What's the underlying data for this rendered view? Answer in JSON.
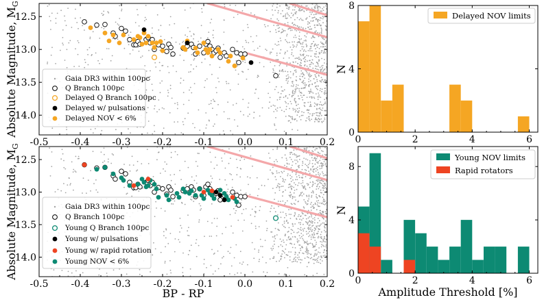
{
  "colors": {
    "gaia": "#a3a3a3",
    "q_branch_edge": "#000000",
    "delayed": "#f5a623",
    "pulsation": "#000000",
    "young": "#0d8a73",
    "rapid": "#ee4422",
    "band": "#f4a7a9"
  },
  "chart_data": [
    {
      "id": "cmd_delayed",
      "type": "scatter",
      "xlabel": "",
      "ylabel": "Absolute Magnitude, M",
      "ylabel_sub": "G",
      "xlim": [
        -0.5,
        0.2
      ],
      "ylim": [
        14.3,
        12.3
      ],
      "xticks": [
        "-0.5",
        "-0.4",
        "-0.3",
        "-0.2",
        "-0.1",
        "0.0",
        "0.1",
        "0.2"
      ],
      "yticks": [
        "12.5",
        "13.0",
        "13.5",
        "14.0"
      ],
      "legend_position": "lower-left",
      "legend": [
        {
          "label": "Gaia DR3 within 100pc",
          "marker": "gaia"
        },
        {
          "label": "Q Branch 100pc",
          "marker": "qbranch"
        },
        {
          "label": "Delayed Q Branch 100pc",
          "marker": "delayed_q"
        },
        {
          "label": "Delayed w/ pulsations",
          "marker": "pulsation"
        },
        {
          "label": "Delayed NOV < 6%",
          "marker": "delayed_nov"
        }
      ],
      "series": {
        "q_branch": [
          [
            -0.39,
            12.58
          ],
          [
            -0.36,
            12.63
          ],
          [
            -0.34,
            12.62
          ],
          [
            -0.32,
            12.75
          ],
          [
            -0.315,
            12.8
          ],
          [
            -0.3,
            12.68
          ],
          [
            -0.29,
            12.72
          ],
          [
            -0.28,
            12.85
          ],
          [
            -0.27,
            12.93
          ],
          [
            -0.265,
            12.93
          ],
          [
            -0.26,
            12.88
          ],
          [
            -0.255,
            12.92
          ],
          [
            -0.24,
            12.85
          ],
          [
            -0.235,
            12.82
          ],
          [
            -0.23,
            12.9
          ],
          [
            -0.225,
            12.85
          ],
          [
            -0.22,
            13.0
          ],
          [
            -0.21,
            12.93
          ],
          [
            -0.2,
            12.95
          ],
          [
            -0.19,
            13.03
          ],
          [
            -0.185,
            12.92
          ],
          [
            -0.18,
            12.97
          ],
          [
            -0.175,
            13.07
          ],
          [
            -0.15,
            12.98
          ],
          [
            -0.14,
            12.95
          ],
          [
            -0.13,
            12.92
          ],
          [
            -0.125,
            12.97
          ],
          [
            -0.12,
            13.07
          ],
          [
            -0.11,
            12.95
          ],
          [
            -0.1,
            13.05
          ],
          [
            -0.095,
            12.92
          ],
          [
            -0.09,
            12.88
          ],
          [
            -0.085,
            12.95
          ],
          [
            -0.08,
            13.0
          ],
          [
            -0.075,
            13.05
          ],
          [
            -0.07,
            13.02
          ],
          [
            -0.065,
            12.98
          ],
          [
            -0.06,
            13.12
          ],
          [
            -0.05,
            13.05
          ],
          [
            -0.045,
            13.1
          ],
          [
            -0.03,
            13.0
          ],
          [
            -0.02,
            13.05
          ],
          [
            -0.01,
            13.07
          ],
          [
            0.0,
            13.07
          ],
          [
            -0.015,
            13.2
          ],
          [
            0.075,
            13.4
          ]
        ],
        "delayed_q": [
          [
            -0.22,
            13.12
          ]
        ],
        "pulsation": [
          [
            -0.245,
            12.7
          ],
          [
            -0.14,
            12.9
          ],
          [
            0.015,
            13.2
          ]
        ],
        "delayed_nov": [
          [
            -0.375,
            12.67
          ],
          [
            -0.34,
            12.75
          ],
          [
            -0.33,
            12.87
          ],
          [
            -0.32,
            12.78
          ],
          [
            -0.305,
            12.9
          ],
          [
            -0.295,
            12.78
          ],
          [
            -0.27,
            12.85
          ],
          [
            -0.26,
            12.8
          ],
          [
            -0.255,
            12.82
          ],
          [
            -0.25,
            12.92
          ],
          [
            -0.245,
            12.75
          ],
          [
            -0.24,
            12.9
          ],
          [
            -0.235,
            12.8
          ],
          [
            -0.225,
            12.9
          ],
          [
            -0.22,
            12.97
          ],
          [
            -0.215,
            12.9
          ],
          [
            -0.205,
            12.88
          ],
          [
            -0.2,
            13.02
          ],
          [
            -0.15,
            12.97
          ],
          [
            -0.145,
            13.0
          ],
          [
            -0.14,
            12.87
          ],
          [
            -0.12,
            12.98
          ],
          [
            -0.115,
            13.05
          ],
          [
            -0.1,
            12.9
          ],
          [
            -0.095,
            13.0
          ],
          [
            -0.09,
            13.05
          ],
          [
            -0.085,
            13.0
          ],
          [
            -0.08,
            13.1
          ],
          [
            -0.065,
            13.0
          ],
          [
            -0.06,
            13.05
          ],
          [
            -0.04,
            13.18
          ],
          [
            -0.035,
            13.1
          ],
          [
            -0.025,
            13.25
          ],
          [
            -0.005,
            13.13
          ]
        ]
      }
    },
    {
      "id": "hist_delayed",
      "type": "bar",
      "xlabel": "",
      "ylabel": "N",
      "xlim": [
        0,
        6.3
      ],
      "ylim": [
        0,
        8
      ],
      "xticks": [
        "0",
        "2",
        "4",
        "6"
      ],
      "yticks": [
        "0",
        "4",
        "8"
      ],
      "bin_width": 0.4,
      "legend_position": "top-right",
      "legend": [
        {
          "label": "Delayed NOV limits",
          "series": "delayed"
        }
      ],
      "series": [
        {
          "name": "Delayed NOV limits",
          "bins": [
            [
              0.0,
              7
            ],
            [
              0.4,
              8
            ],
            [
              0.8,
              2
            ],
            [
              1.2,
              3
            ],
            [
              1.6,
              0
            ],
            [
              2.0,
              0
            ],
            [
              2.4,
              0
            ],
            [
              2.8,
              0
            ],
            [
              3.2,
              3
            ],
            [
              3.6,
              2
            ],
            [
              4.0,
              0
            ],
            [
              4.4,
              0
            ],
            [
              4.8,
              0
            ],
            [
              5.2,
              0
            ],
            [
              5.6,
              1
            ]
          ]
        }
      ]
    },
    {
      "id": "cmd_young",
      "type": "scatter",
      "xlabel": "BP - RP",
      "ylabel": "Absolute Magnitude, M",
      "ylabel_sub": "G",
      "xlim": [
        -0.5,
        0.2
      ],
      "ylim": [
        14.3,
        12.3
      ],
      "xticks": [
        "-0.5",
        "-0.4",
        "-0.3",
        "-0.2",
        "-0.1",
        "0.0",
        "0.1",
        "0.2"
      ],
      "yticks": [
        "12.5",
        "13.0",
        "13.5",
        "14.0"
      ],
      "legend_position": "lower-left",
      "legend": [
        {
          "label": "Gaia DR3 within 100pc",
          "marker": "gaia"
        },
        {
          "label": "Q Branch 100pc",
          "marker": "qbranch"
        },
        {
          "label": "Young Q Branch 100pc",
          "marker": "young_q"
        },
        {
          "label": "Young w/ pulsations",
          "marker": "pulsation"
        },
        {
          "label": "Young w/ rapid rotation",
          "marker": "rapid"
        },
        {
          "label": "Young NOV < 6%",
          "marker": "young_nov"
        }
      ],
      "series": {
        "q_branch": [
          [
            -0.39,
            12.58
          ],
          [
            -0.36,
            12.63
          ],
          [
            -0.34,
            12.62
          ],
          [
            -0.32,
            12.75
          ],
          [
            -0.315,
            12.8
          ],
          [
            -0.3,
            12.68
          ],
          [
            -0.29,
            12.72
          ],
          [
            -0.28,
            12.85
          ],
          [
            -0.27,
            12.93
          ],
          [
            -0.265,
            12.93
          ],
          [
            -0.26,
            12.88
          ],
          [
            -0.255,
            12.92
          ],
          [
            -0.24,
            12.85
          ],
          [
            -0.235,
            12.82
          ],
          [
            -0.23,
            12.9
          ],
          [
            -0.225,
            12.85
          ],
          [
            -0.22,
            13.0
          ],
          [
            -0.21,
            12.93
          ],
          [
            -0.2,
            12.95
          ],
          [
            -0.19,
            13.03
          ],
          [
            -0.185,
            12.92
          ],
          [
            -0.18,
            12.97
          ],
          [
            -0.175,
            13.07
          ],
          [
            -0.15,
            12.98
          ],
          [
            -0.14,
            12.95
          ],
          [
            -0.13,
            12.92
          ],
          [
            -0.125,
            12.97
          ],
          [
            -0.12,
            13.07
          ],
          [
            -0.11,
            12.95
          ],
          [
            -0.1,
            13.05
          ],
          [
            -0.095,
            12.92
          ],
          [
            -0.09,
            12.88
          ],
          [
            -0.085,
            12.95
          ],
          [
            -0.08,
            13.0
          ],
          [
            -0.075,
            13.05
          ],
          [
            -0.07,
            13.02
          ],
          [
            -0.065,
            12.98
          ],
          [
            -0.06,
            13.12
          ],
          [
            -0.05,
            13.05
          ],
          [
            -0.045,
            13.1
          ],
          [
            -0.03,
            13.0
          ],
          [
            -0.02,
            13.05
          ],
          [
            -0.01,
            13.07
          ],
          [
            0.0,
            13.07
          ],
          [
            -0.015,
            13.2
          ],
          [
            0.075,
            13.4
          ]
        ],
        "young_q": [
          [
            0.075,
            13.4
          ]
        ],
        "pulsation": [
          [
            -0.07,
            13.0
          ],
          [
            -0.06,
            13.05
          ],
          [
            -0.05,
            13.12
          ]
        ],
        "rapid": [
          [
            -0.39,
            12.58
          ],
          [
            -0.27,
            12.9
          ],
          [
            -0.235,
            12.8
          ],
          [
            -0.1,
            13.0
          ],
          [
            -0.08,
            12.98
          ],
          [
            -0.03,
            13.08
          ]
        ],
        "young_nov": [
          [
            -0.36,
            12.65
          ],
          [
            -0.34,
            12.62
          ],
          [
            -0.32,
            12.72
          ],
          [
            -0.3,
            12.78
          ],
          [
            -0.295,
            12.82
          ],
          [
            -0.28,
            12.9
          ],
          [
            -0.26,
            12.88
          ],
          [
            -0.25,
            12.8
          ],
          [
            -0.245,
            12.85
          ],
          [
            -0.24,
            12.92
          ],
          [
            -0.235,
            12.9
          ],
          [
            -0.23,
            12.82
          ],
          [
            -0.22,
            12.88
          ],
          [
            -0.215,
            12.95
          ],
          [
            -0.21,
            13.08
          ],
          [
            -0.19,
            13.05
          ],
          [
            -0.185,
            13.12
          ],
          [
            -0.165,
            13.02
          ],
          [
            -0.16,
            13.08
          ],
          [
            -0.15,
            12.95
          ],
          [
            -0.145,
            13.0
          ],
          [
            -0.135,
            13.02
          ],
          [
            -0.13,
            12.98
          ],
          [
            -0.12,
            13.05
          ],
          [
            -0.11,
            12.95
          ],
          [
            -0.105,
            13.05
          ],
          [
            -0.1,
            13.1
          ],
          [
            -0.09,
            12.97
          ],
          [
            -0.085,
            13.02
          ],
          [
            -0.08,
            13.05
          ],
          [
            -0.075,
            13.1
          ],
          [
            -0.06,
            12.97
          ],
          [
            -0.05,
            13.02
          ],
          [
            -0.045,
            13.07
          ],
          [
            -0.04,
            13.12
          ],
          [
            -0.025,
            13.1
          ],
          [
            -0.02,
            13.15
          ]
        ]
      }
    },
    {
      "id": "hist_young",
      "type": "bar",
      "xlabel": "Amplitude Threshold [%]",
      "ylabel": "N",
      "xlim": [
        0,
        6.3
      ],
      "ylim": [
        0,
        9.5
      ],
      "xticks": [
        "0",
        "2",
        "4",
        "6"
      ],
      "yticks": [
        "0",
        "4",
        "8"
      ],
      "bin_width": 0.4,
      "legend_position": "top-right",
      "legend": [
        {
          "label": "Young NOV limits",
          "series": "young"
        },
        {
          "label": "Rapid rotators",
          "series": "rapid"
        }
      ],
      "series": [
        {
          "name": "Young NOV limits",
          "bins": [
            [
              0.0,
              5
            ],
            [
              0.4,
              9
            ],
            [
              0.8,
              1
            ],
            [
              1.2,
              0
            ],
            [
              1.6,
              4
            ],
            [
              2.0,
              3
            ],
            [
              2.4,
              2
            ],
            [
              2.8,
              1
            ],
            [
              3.2,
              2
            ],
            [
              3.6,
              4
            ],
            [
              4.0,
              1
            ],
            [
              4.4,
              2
            ],
            [
              4.8,
              2
            ],
            [
              5.2,
              0
            ],
            [
              5.6,
              2
            ]
          ]
        },
        {
          "name": "Rapid rotators",
          "bins": [
            [
              0.0,
              3
            ],
            [
              0.4,
              2
            ],
            [
              0.8,
              0
            ],
            [
              1.2,
              0
            ],
            [
              1.6,
              1
            ]
          ]
        }
      ]
    }
  ]
}
